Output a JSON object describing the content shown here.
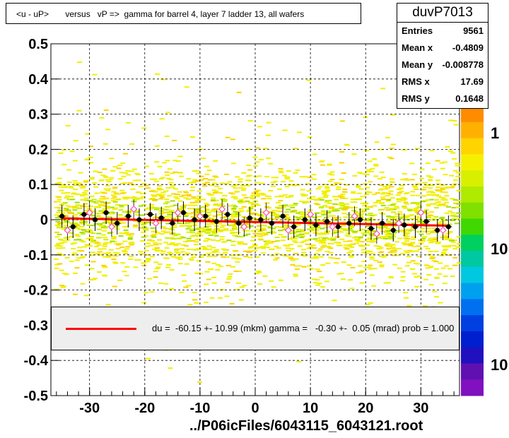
{
  "title": "<u - uP>       versus   vP =>  gamma for barrel 4, layer 7 ladder 13, all wafers",
  "stats": {
    "name": "duvP7013",
    "rows": [
      {
        "label": "Entries",
        "value": "9561"
      },
      {
        "label": "Mean x",
        "value": "-0.4809"
      },
      {
        "label": "Mean y",
        "value": "-0.008778"
      },
      {
        "label": "RMS x",
        "value": "17.69"
      },
      {
        "label": "RMS y",
        "value": "0.1648"
      }
    ]
  },
  "fit_text": "du =  -60.15 +- 10.99 (mkm) gamma =   -0.30 +-  0.05 (mrad) prob = 1.000",
  "xlabel": "../P06icFiles/6043115_6043121.root",
  "colors": {
    "fit_line": "#ff0000",
    "profile_marker": "#000000",
    "open_marker": "#ff4db8"
  },
  "chart_data": {
    "type": "scatter",
    "subtype": "2D histogram with profile and linear fit",
    "xlim": [
      -37,
      37
    ],
    "ylim": [
      -0.5,
      0.5
    ],
    "x_ticks": [
      -30,
      -20,
      -10,
      0,
      10,
      20,
      30
    ],
    "y_ticks": [
      -0.5,
      -0.4,
      -0.3,
      -0.2,
      -0.1,
      0,
      0.1,
      0.2,
      0.3,
      0.4,
      0.5
    ],
    "y_tick_labels": [
      "-0.5",
      "-0.4",
      "-0.3",
      "-0.2",
      "-0.1",
      "0",
      "0.1",
      "0.2",
      "0.3",
      "0.4",
      "0.5"
    ],
    "grid": true,
    "colorbar_labels": [
      "1",
      "10",
      "10"
    ],
    "fit_line": {
      "x": [
        -35,
        35
      ],
      "y": [
        0.004,
        -0.017
      ]
    },
    "profile_points": {
      "x": [
        -35,
        -33,
        -31,
        -29,
        -27,
        -25,
        -23,
        -21,
        -19,
        -17,
        -15,
        -13,
        -11,
        -9,
        -7,
        -5,
        -3,
        -1,
        1,
        3,
        5,
        7,
        9,
        11,
        13,
        15,
        17,
        19,
        21,
        23,
        25,
        27,
        29,
        31,
        33,
        35
      ],
      "y": [
        0.01,
        -0.02,
        0.015,
        0.0,
        0.02,
        -0.01,
        0.01,
        0.0,
        0.015,
        0.005,
        -0.01,
        0.02,
        0.0,
        0.01,
        -0.005,
        0.015,
        -0.01,
        0.005,
        0.0,
        -0.01,
        0.01,
        -0.02,
        0.0,
        -0.015,
        -0.005,
        -0.02,
        -0.01,
        0.0,
        -0.025,
        -0.01,
        -0.03,
        -0.015,
        -0.02,
        -0.005,
        -0.03,
        -0.02
      ]
    },
    "open_points": {
      "x": [
        -34,
        -30,
        -26,
        -22,
        -18,
        -14,
        -10,
        -6,
        -2,
        2,
        6,
        10,
        14,
        18,
        22,
        26,
        30,
        34
      ],
      "y": [
        -0.03,
        0.02,
        -0.02,
        0.03,
        -0.01,
        0.02,
        0.01,
        0.03,
        -0.02,
        0.02,
        -0.03,
        0.015,
        -0.02,
        0.01,
        -0.04,
        -0.01,
        0.02,
        -0.03
      ]
    }
  }
}
